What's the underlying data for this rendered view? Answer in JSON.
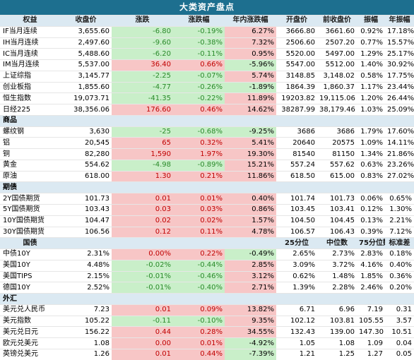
{
  "title": "大类资产盘点",
  "header": [
    "权益",
    "收盘价",
    "涨跌",
    "涨跌幅",
    "年内涨跌幅",
    "开盘价",
    "前收盘价",
    "振幅",
    "年振幅"
  ],
  "bond_header": [
    "国债",
    "",
    "",
    "",
    "",
    "25分位",
    "中位数",
    "75分位数",
    "标准差"
  ],
  "rows": [
    {
      "type": "hdr",
      "ref": "header"
    },
    {
      "type": "data",
      "cells": [
        "IF当月连续",
        "3,655.60",
        "-6.80",
        "-0.19%",
        "6.27%",
        "3666.80",
        "3661.60",
        "0.92%",
        "17.18%"
      ],
      "s": [
        0,
        0,
        -1,
        -1,
        1,
        0,
        0,
        0,
        0
      ]
    },
    {
      "type": "data",
      "cells": [
        "IH当月连续",
        "2,497.60",
        "-9.60",
        "-0.38%",
        "7.32%",
        "2506.60",
        "2507.20",
        "0.77%",
        "15.57%"
      ],
      "s": [
        0,
        0,
        -1,
        -1,
        1,
        0,
        0,
        0,
        0
      ]
    },
    {
      "type": "data",
      "cells": [
        "IC当月连续",
        "5,488.60",
        "-6.20",
        "-0.11%",
        "0.95%",
        "5520.00",
        "5497.00",
        "1.29%",
        "25.17%"
      ],
      "s": [
        0,
        0,
        -1,
        -1,
        1,
        0,
        0,
        0,
        0
      ]
    },
    {
      "type": "data",
      "cells": [
        "IM当月连续",
        "5,537.00",
        "36.40",
        "0.66%",
        "-5.96%",
        "5547.00",
        "5512.00",
        "1.40%",
        "30.92%"
      ],
      "s": [
        0,
        0,
        1,
        1,
        -1,
        0,
        0,
        0,
        0
      ]
    },
    {
      "type": "data",
      "cells": [
        "上证综指",
        "3,145.77",
        "-2.25",
        "-0.07%",
        "5.74%",
        "3148.85",
        "3,148.02",
        "0.58%",
        "17.75%"
      ],
      "s": [
        0,
        0,
        -1,
        -1,
        1,
        0,
        0,
        0,
        0
      ]
    },
    {
      "type": "data",
      "cells": [
        "创业板指",
        "1,855.60",
        "-4.77",
        "-0.26%",
        "-1.89%",
        "1864.39",
        "1,860.37",
        "1.17%",
        "23.44%"
      ],
      "s": [
        0,
        0,
        -1,
        -1,
        -1,
        0,
        0,
        0,
        0
      ]
    },
    {
      "type": "data",
      "cells": [
        "恒生指数",
        "19,073.71",
        "-41.35",
        "-0.22%",
        "11.89%",
        "19203.82",
        "19,115.06",
        "1.20%",
        "26.44%"
      ],
      "s": [
        0,
        0,
        -1,
        -1,
        1,
        0,
        0,
        0,
        0
      ]
    },
    {
      "type": "data",
      "cells": [
        "日经225",
        "38,356.06",
        "176.60",
        "0.46%",
        "14.62%",
        "38287.99",
        "38,179.46",
        "1.03%",
        "25.09%"
      ],
      "s": [
        0,
        0,
        1,
        1,
        1,
        0,
        0,
        0,
        0
      ]
    },
    {
      "type": "sec",
      "label": "商品"
    },
    {
      "type": "data",
      "cells": [
        "螺纹钢",
        "3,630",
        "-25",
        "-0.68%",
        "-9.25%",
        "3686",
        "3686",
        "1.79%",
        "17.60%"
      ],
      "s": [
        0,
        0,
        -1,
        -1,
        -1,
        0,
        0,
        0,
        0
      ]
    },
    {
      "type": "data",
      "cells": [
        "铝",
        "20,545",
        "65",
        "0.32%",
        "5.41%",
        "20640",
        "20575",
        "1.09%",
        "14.11%"
      ],
      "s": [
        0,
        0,
        1,
        1,
        1,
        0,
        0,
        0,
        0
      ]
    },
    {
      "type": "data",
      "cells": [
        "铜",
        "82,280",
        "1,590",
        "1.97%",
        "19.30%",
        "81540",
        "81150",
        "1.34%",
        "21.86%"
      ],
      "s": [
        0,
        0,
        1,
        1,
        1,
        0,
        0,
        0,
        0
      ]
    },
    {
      "type": "data",
      "cells": [
        "黄金",
        "554.62",
        "-4.98",
        "-0.89%",
        "15.21%",
        "557.24",
        "557.62",
        "0.63%",
        "23.26%"
      ],
      "s": [
        0,
        0,
        -1,
        -1,
        1,
        0,
        0,
        0,
        0
      ]
    },
    {
      "type": "data",
      "cells": [
        "原油",
        "618.00",
        "1.30",
        "0.21%",
        "11.86%",
        "618.50",
        "615.00",
        "0.83%",
        "27.02%"
      ],
      "s": [
        0,
        0,
        1,
        1,
        1,
        0,
        0,
        0,
        0
      ]
    },
    {
      "type": "sec",
      "label": "期债"
    },
    {
      "type": "data",
      "cells": [
        "2Y国债期货",
        "101.73",
        "0.01",
        "0.01%",
        "0.40%",
        "101.74",
        "101.73",
        "0.06%",
        "0.65%"
      ],
      "s": [
        0,
        0,
        1,
        1,
        1,
        0,
        0,
        0,
        0
      ]
    },
    {
      "type": "data",
      "cells": [
        "5Y国债期货",
        "103.43",
        "0.03",
        "0.03%",
        "0.86%",
        "103.45",
        "103.41",
        "0.12%",
        "1.30%"
      ],
      "s": [
        0,
        0,
        1,
        1,
        1,
        0,
        0,
        0,
        0
      ]
    },
    {
      "type": "data",
      "cells": [
        "10Y国债期货",
        "104.47",
        "0.02",
        "0.02%",
        "1.57%",
        "104.50",
        "104.45",
        "0.13%",
        "2.21%"
      ],
      "s": [
        0,
        0,
        1,
        1,
        1,
        0,
        0,
        0,
        0
      ]
    },
    {
      "type": "data",
      "cells": [
        "30Y国债期货",
        "106.56",
        "0.12",
        "0.11%",
        "4.78%",
        "106.57",
        "106.43",
        "0.39%",
        "7.12%"
      ],
      "s": [
        0,
        0,
        1,
        1,
        1,
        0,
        0,
        0,
        0
      ]
    },
    {
      "type": "bhdr",
      "ref": "bond_header"
    },
    {
      "type": "data",
      "cells": [
        "中债10Y",
        "2.31%",
        "0.00%",
        "0.22%",
        "-0.49%",
        "2.65%",
        "2.73%",
        "2.83%",
        "0.18%"
      ],
      "s": [
        0,
        0,
        1,
        1,
        -1,
        0,
        0,
        0,
        0
      ]
    },
    {
      "type": "data",
      "cells": [
        "美国10Y",
        "4.48%",
        "-0.02%",
        "-0.44%",
        "2.85%",
        "3.09%",
        "3.72%",
        "4.16%",
        "0.40%"
      ],
      "s": [
        0,
        0,
        -1,
        -1,
        1,
        0,
        0,
        0,
        0
      ]
    },
    {
      "type": "data",
      "cells": [
        "美国TIPS",
        "2.15%",
        "-0.01%",
        "-0.46%",
        "3.12%",
        "0.62%",
        "1.48%",
        "1.85%",
        "0.36%"
      ],
      "s": [
        0,
        0,
        -1,
        -1,
        1,
        0,
        0,
        0,
        0
      ]
    },
    {
      "type": "data",
      "cells": [
        "德国10Y",
        "2.52%",
        "-0.01%",
        "-0.40%",
        "2.71%",
        "1.39%",
        "2.28%",
        "2.46%",
        "0.20%"
      ],
      "s": [
        0,
        0,
        -1,
        -1,
        1,
        0,
        0,
        0,
        0
      ]
    },
    {
      "type": "sec",
      "label": "外汇"
    },
    {
      "type": "data",
      "cells": [
        "美元兑人民币",
        "7.23",
        "0.01",
        "0.09%",
        "13.82%",
        "6.71",
        "6.96",
        "7.19",
        "0.31"
      ],
      "s": [
        0,
        0,
        1,
        1,
        1,
        0,
        0,
        0,
        0
      ]
    },
    {
      "type": "data",
      "cells": [
        "美元指数",
        "105.22",
        "-0.11",
        "-0.10%",
        "9.35%",
        "102.12",
        "103.81",
        "105.55",
        "3.57"
      ],
      "s": [
        0,
        0,
        -1,
        -1,
        1,
        0,
        0,
        0,
        0
      ]
    },
    {
      "type": "data",
      "cells": [
        "美元兑日元",
        "156.22",
        "0.44",
        "0.28%",
        "34.55%",
        "132.43",
        "139.00",
        "147.30",
        "10.51"
      ],
      "s": [
        0,
        0,
        1,
        1,
        1,
        0,
        0,
        0,
        0
      ]
    },
    {
      "type": "data",
      "cells": [
        "欧元兑美元",
        "1.08",
        "0.00",
        "0.01%",
        "-4.92%",
        "1.05",
        "1.08",
        "1.09",
        "0.04"
      ],
      "s": [
        0,
        0,
        1,
        1,
        -1,
        0,
        0,
        0,
        0
      ]
    },
    {
      "type": "data",
      "cells": [
        "英镑兑美元",
        "1.26",
        "0.01",
        "0.44%",
        "-7.39%",
        "1.21",
        "1.25",
        "1.27",
        "0.05"
      ],
      "s": [
        0,
        0,
        1,
        1,
        -1,
        0,
        0,
        0,
        0
      ]
    }
  ],
  "colors": {
    "header_bg": "#1d6f8f",
    "section_bg": "#dbe9f2",
    "up_bg": "#f7c6c6",
    "down_bg": "#c9efc9",
    "up_text": "#c00000",
    "down_text": "#2a8a2a"
  }
}
